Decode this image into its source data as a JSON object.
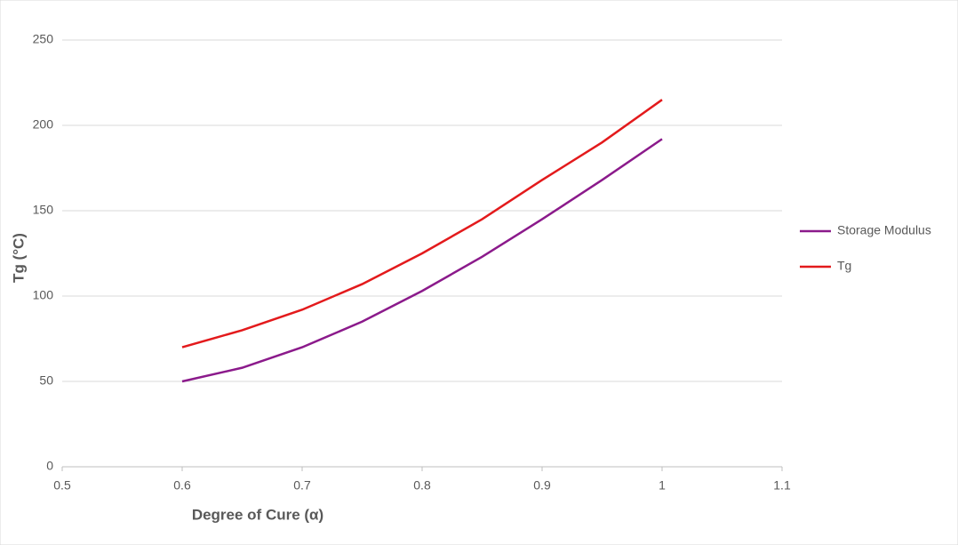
{
  "chart_data": {
    "type": "line",
    "x_label": "Degree of Cure (α)",
    "y_label": "Tg (°C)",
    "x": [
      0.6,
      0.65,
      0.7,
      0.75,
      0.8,
      0.85,
      0.9,
      0.95,
      1.0
    ],
    "series": [
      {
        "name": "Storage Modulus",
        "color": "#8b1a8b",
        "values": [
          50,
          58,
          70,
          85,
          103,
          123,
          145,
          168,
          192
        ]
      },
      {
        "name": "Tg",
        "color": "#e31a1c",
        "values": [
          70,
          80,
          92,
          107,
          125,
          145,
          168,
          190,
          215
        ]
      }
    ],
    "xlim": [
      0.5,
      1.1
    ],
    "xticks": [
      0.5,
      0.6,
      0.7,
      0.8,
      0.9,
      1,
      1.1
    ],
    "ylim": [
      0,
      250
    ],
    "yticks": [
      0,
      50,
      100,
      150,
      200,
      250
    ],
    "grid": true,
    "legend": "right"
  }
}
